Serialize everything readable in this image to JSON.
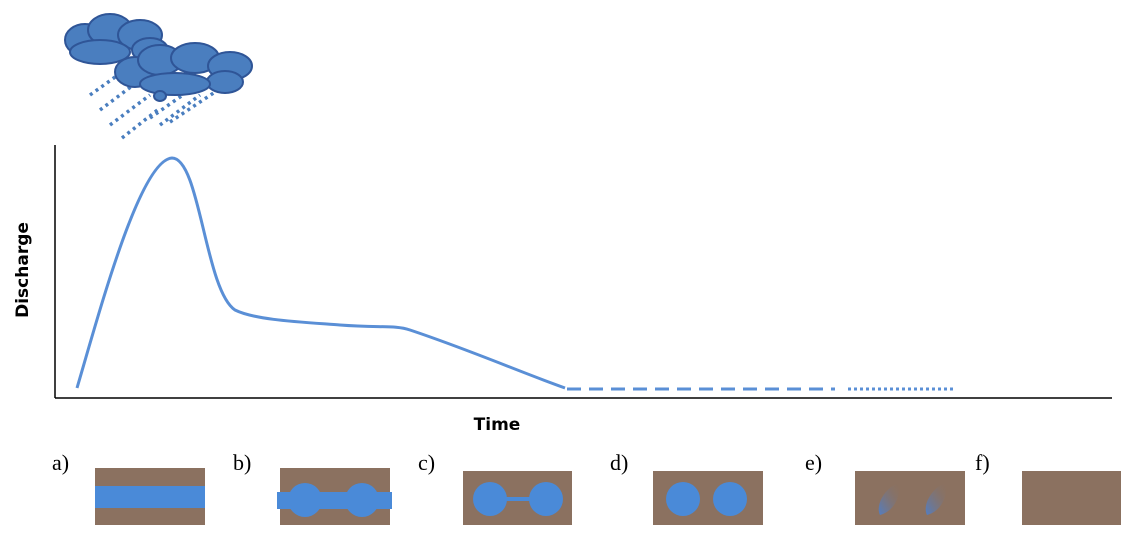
{
  "axes": {
    "y_label": "Discharge",
    "x_label": "Time"
  },
  "panels": [
    {
      "label": "a)"
    },
    {
      "label": "b)"
    },
    {
      "label": "c)"
    },
    {
      "label": "d)"
    },
    {
      "label": "e)"
    },
    {
      "label": "f)"
    }
  ]
}
